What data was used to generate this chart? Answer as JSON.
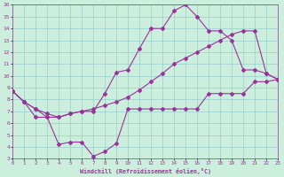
{
  "xlabel": "Windchill (Refroidissement éolien,°C)",
  "bg_color": "#cceedd",
  "line_color": "#993399",
  "grid_color": "#99cccc",
  "xlim": [
    0,
    23
  ],
  "ylim": [
    3,
    16
  ],
  "xticks": [
    0,
    1,
    2,
    3,
    4,
    5,
    6,
    7,
    8,
    9,
    10,
    11,
    12,
    13,
    14,
    15,
    16,
    17,
    18,
    19,
    20,
    21,
    22,
    23
  ],
  "yticks": [
    3,
    4,
    5,
    6,
    7,
    8,
    9,
    10,
    11,
    12,
    13,
    14,
    15,
    16
  ],
  "line1_x": [
    0,
    1,
    2,
    3,
    4,
    5,
    6,
    7,
    8,
    9,
    10,
    11,
    12,
    13,
    14,
    15,
    16,
    17,
    18,
    19,
    20,
    21,
    22,
    23
  ],
  "line1_y": [
    8.7,
    7.8,
    6.5,
    6.5,
    4.2,
    4.4,
    4.4,
    3.2,
    3.6,
    4.3,
    7.2,
    7.2,
    7.2,
    7.2,
    7.2,
    7.2,
    7.2,
    8.5,
    8.5,
    8.5,
    8.5,
    9.5,
    9.5,
    9.7
  ],
  "line2_x": [
    0,
    1,
    2,
    3,
    4,
    5,
    6,
    7,
    8,
    9,
    10,
    11,
    12,
    13,
    14,
    15,
    16,
    17,
    18,
    19,
    20,
    21,
    22,
    23
  ],
  "line2_y": [
    8.7,
    7.8,
    7.2,
    6.5,
    6.5,
    6.8,
    7.0,
    7.0,
    8.5,
    10.3,
    10.5,
    12.3,
    14.0,
    14.0,
    15.5,
    16.0,
    15.0,
    13.8,
    13.8,
    13.0,
    10.5,
    10.5,
    10.2,
    9.7
  ],
  "line3_x": [
    0,
    1,
    2,
    3,
    4,
    5,
    6,
    7,
    8,
    9,
    10,
    11,
    12,
    13,
    14,
    15,
    16,
    17,
    18,
    19,
    20,
    21,
    22,
    23
  ],
  "line3_y": [
    8.7,
    7.8,
    7.2,
    6.8,
    6.5,
    6.8,
    7.0,
    7.2,
    7.5,
    7.8,
    8.2,
    8.8,
    9.5,
    10.2,
    11.0,
    11.5,
    12.0,
    12.5,
    13.0,
    13.5,
    13.8,
    13.8,
    10.2,
    9.7
  ]
}
